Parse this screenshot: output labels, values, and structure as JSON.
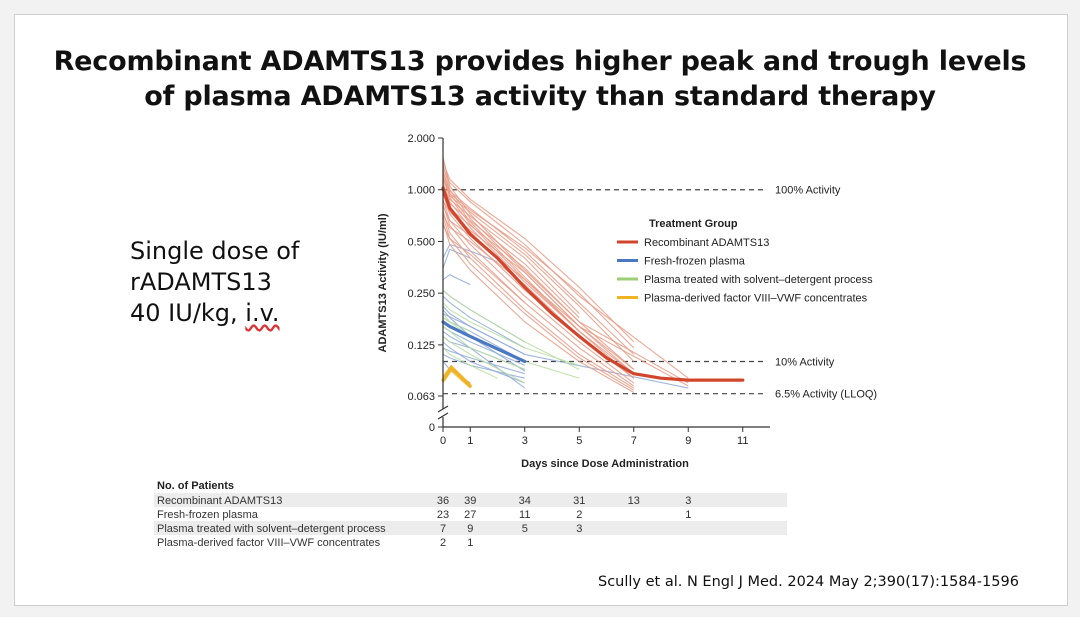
{
  "slide": {
    "title_line1": "Recombinant ADAMTS13 provides higher peak and trough levels",
    "title_line2": "of plasma ADAMTS13 activity than standard therapy",
    "side_line1": "Single dose of",
    "side_line2": "rADAMTS13",
    "side_line3_a": "40 IU/kg, ",
    "side_line3_b": "i.v.",
    "citation": "Scully et al. N Engl J Med. 2024 May 2;390(17):1584-1596"
  },
  "chart_data": {
    "type": "line",
    "ylabel": "ADAMTS13 Activity (IU/ml)",
    "xlabel": "Days since Dose Administration",
    "y_scale": "log2",
    "yticks": [
      {
        "value": 2.0,
        "label": "2.000"
      },
      {
        "value": 1.0,
        "label": "1.000"
      },
      {
        "value": 0.5,
        "label": "0.500"
      },
      {
        "value": 0.25,
        "label": "0.250"
      },
      {
        "value": 0.125,
        "label": "0.125"
      },
      {
        "value": 0.063,
        "label": "0.063"
      }
    ],
    "y_zero_label": "0",
    "xticks": [
      0,
      1,
      3,
      5,
      7,
      9,
      11
    ],
    "xlim": [
      0,
      12
    ],
    "reference_lines": [
      {
        "value": 1.0,
        "label": "100% Activity"
      },
      {
        "value": 0.1,
        "label": "10% Activity"
      },
      {
        "value": 0.065,
        "label": "6.5% Activity (LLOQ)"
      }
    ],
    "legend_title": "Treatment Group",
    "series": [
      {
        "name": "Recombinant ADAMTS13",
        "color": "#d2452d",
        "light_color": "#e89a85",
        "median": {
          "x": [
            0,
            0.25,
            1,
            2,
            3,
            4,
            5,
            6,
            7,
            8,
            9,
            11
          ],
          "y": [
            1.02,
            0.78,
            0.55,
            0.4,
            0.27,
            0.19,
            0.14,
            0.105,
            0.085,
            0.08,
            0.078,
            0.078
          ]
        },
        "individual": [
          {
            "x": [
              0,
              0.25,
              1,
              3,
              5,
              7
            ],
            "y": [
              1.55,
              1.05,
              0.72,
              0.34,
              0.17,
              0.09
            ]
          },
          {
            "x": [
              0,
              0.25,
              1,
              3,
              5,
              7
            ],
            "y": [
              1.4,
              1.0,
              0.68,
              0.33,
              0.16,
              0.085
            ]
          },
          {
            "x": [
              0,
              0.25,
              1,
              3,
              5,
              7
            ],
            "y": [
              1.3,
              0.95,
              0.65,
              0.31,
              0.15,
              0.08
            ]
          },
          {
            "x": [
              0,
              0.25,
              1,
              3,
              5,
              7
            ],
            "y": [
              1.2,
              0.9,
              0.63,
              0.3,
              0.16,
              0.09
            ]
          },
          {
            "x": [
              0,
              0.25,
              1,
              3,
              5,
              7
            ],
            "y": [
              1.1,
              0.85,
              0.6,
              0.29,
              0.15,
              0.085
            ]
          },
          {
            "x": [
              0,
              0.25,
              1,
              3,
              5,
              7
            ],
            "y": [
              1.0,
              0.8,
              0.57,
              0.27,
              0.14,
              0.08
            ]
          },
          {
            "x": [
              0,
              0.25,
              1,
              3,
              5,
              7
            ],
            "y": [
              0.95,
              0.72,
              0.52,
              0.26,
              0.14,
              0.08
            ]
          },
          {
            "x": [
              0,
              0.25,
              1,
              3,
              5,
              7
            ],
            "y": [
              0.88,
              0.66,
              0.48,
              0.24,
              0.13,
              0.075
            ]
          },
          {
            "x": [
              0,
              0.25,
              1,
              3,
              5,
              7
            ],
            "y": [
              0.82,
              0.62,
              0.44,
              0.22,
              0.12,
              0.072
            ]
          },
          {
            "x": [
              0,
              0.25,
              1,
              3,
              5,
              7
            ],
            "y": [
              0.75,
              0.56,
              0.4,
              0.2,
              0.11,
              0.07
            ]
          },
          {
            "x": [
              0,
              0.25,
              1,
              3,
              5,
              7
            ],
            "y": [
              0.7,
              0.52,
              0.37,
              0.19,
              0.105,
              0.068
            ]
          },
          {
            "x": [
              0,
              0.25,
              1,
              3,
              5,
              7
            ],
            "y": [
              0.65,
              0.48,
              0.34,
              0.17,
              0.1,
              0.066
            ]
          },
          {
            "x": [
              0,
              0.25,
              1,
              3,
              5,
              7
            ],
            "y": [
              1.25,
              0.98,
              0.78,
              0.44,
              0.22,
              0.11
            ]
          },
          {
            "x": [
              0,
              0.25,
              1,
              3,
              5,
              7
            ],
            "y": [
              1.15,
              0.92,
              0.74,
              0.42,
              0.21,
              0.1
            ]
          },
          {
            "x": [
              0,
              0.25,
              1,
              3,
              5
            ],
            "y": [
              1.05,
              0.88,
              0.7,
              0.4,
              0.19
            ]
          },
          {
            "x": [
              0,
              0.25,
              1,
              3,
              5
            ],
            "y": [
              0.98,
              0.83,
              0.66,
              0.37,
              0.18
            ]
          },
          {
            "x": [
              0,
              0.25,
              1,
              3,
              5,
              9
            ],
            "y": [
              0.92,
              0.78,
              0.62,
              0.35,
              0.17,
              0.075
            ]
          },
          {
            "x": [
              0,
              0.25,
              1,
              3,
              5,
              9
            ],
            "y": [
              0.86,
              0.74,
              0.58,
              0.33,
              0.16,
              0.072
            ]
          },
          {
            "x": [
              0,
              0.25,
              1,
              3,
              5,
              9
            ],
            "y": [
              1.35,
              1.1,
              0.85,
              0.48,
              0.24,
              0.08
            ]
          },
          {
            "x": [
              0,
              0.25,
              1,
              3,
              5
            ],
            "y": [
              0.8,
              0.66,
              0.54,
              0.3,
              0.15
            ]
          },
          {
            "x": [
              0,
              0.25,
              1,
              3,
              5
            ],
            "y": [
              0.72,
              0.6,
              0.5,
              0.28,
              0.14
            ]
          },
          {
            "x": [
              0,
              0.25,
              1,
              3
            ],
            "y": [
              0.62,
              0.52,
              0.42,
              0.22
            ]
          },
          {
            "x": [
              0,
              0.25,
              1,
              3,
              5,
              7
            ],
            "y": [
              1.45,
              1.15,
              0.88,
              0.52,
              0.27,
              0.13
            ]
          },
          {
            "x": [
              0,
              0.25,
              1,
              3,
              5,
              7
            ],
            "y": [
              1.18,
              0.95,
              0.76,
              0.46,
              0.25,
              0.12
            ]
          }
        ]
      },
      {
        "name": "Fresh-frozen plasma",
        "color": "#4a78c2",
        "light_color": "#8ea9d8",
        "median": {
          "x": [
            0,
            0.25,
            1,
            3
          ],
          "y": [
            0.17,
            0.16,
            0.14,
            0.1
          ]
        },
        "individual": [
          {
            "x": [
              0,
              0.25,
              1,
              3
            ],
            "y": [
              0.24,
              0.22,
              0.18,
              0.12
            ]
          },
          {
            "x": [
              0,
              0.25,
              1,
              3
            ],
            "y": [
              0.21,
              0.19,
              0.16,
              0.11
            ]
          },
          {
            "x": [
              0,
              0.25,
              1,
              3
            ],
            "y": [
              0.18,
              0.17,
              0.15,
              0.1
            ]
          },
          {
            "x": [
              0,
              0.25,
              1,
              3
            ],
            "y": [
              0.16,
              0.15,
              0.13,
              0.095
            ]
          },
          {
            "x": [
              0,
              0.25,
              1,
              3
            ],
            "y": [
              0.14,
              0.13,
              0.12,
              0.09
            ]
          },
          {
            "x": [
              0,
              0.25,
              1,
              3
            ],
            "y": [
              0.12,
              0.115,
              0.105,
              0.085
            ]
          },
          {
            "x": [
              0,
              0.25,
              1,
              3
            ],
            "y": [
              0.11,
              0.105,
              0.095,
              0.08
            ]
          },
          {
            "x": [
              0,
              0.25,
              1,
              3
            ],
            "y": [
              0.2,
              0.18,
              0.14,
              0.088
            ]
          },
          {
            "x": [
              0,
              0.25,
              1,
              3
            ],
            "y": [
              0.26,
              0.24,
              0.2,
              0.13
            ]
          },
          {
            "x": [
              0,
              0.25,
              1
            ],
            "y": [
              0.3,
              0.32,
              0.28
            ]
          },
          {
            "x": [
              0,
              0.25,
              1,
              2
            ],
            "y": [
              0.4,
              0.48,
              0.44,
              0.38
            ]
          },
          {
            "x": [
              0,
              0.25,
              1
            ],
            "y": [
              0.35,
              0.45,
              0.4
            ]
          },
          {
            "x": [
              0,
              0.25,
              1,
              3
            ],
            "y": [
              0.15,
              0.14,
              0.12,
              0.07
            ]
          },
          {
            "x": [
              0,
              0.25,
              1
            ],
            "y": [
              0.1,
              0.09,
              0.075
            ]
          },
          {
            "x": [
              0,
              0.25,
              1,
              3
            ],
            "y": [
              0.13,
              0.12,
              0.1,
              0.075
            ]
          },
          {
            "x": [
              0,
              1,
              3,
              9
            ],
            "y": [
              0.19,
              0.16,
              0.11,
              0.07
            ]
          }
        ]
      },
      {
        "name": "Plasma treated with solvent–detergent process",
        "color": "#9ccf74",
        "light_color": "#b9dea0",
        "median": null,
        "individual": [
          {
            "x": [
              0,
              0.25,
              1,
              3,
              5
            ],
            "y": [
              0.22,
              0.2,
              0.17,
              0.12,
              0.095
            ]
          },
          {
            "x": [
              0,
              0.25,
              1,
              3,
              5
            ],
            "y": [
              0.19,
              0.17,
              0.14,
              0.1,
              0.08
            ]
          },
          {
            "x": [
              0,
              0.25,
              1,
              3
            ],
            "y": [
              0.16,
              0.15,
              0.12,
              0.09
            ]
          },
          {
            "x": [
              0,
              0.25,
              1,
              3,
              5
            ],
            "y": [
              0.26,
              0.24,
              0.2,
              0.13,
              0.09
            ]
          },
          {
            "x": [
              0,
              0.25,
              1,
              3
            ],
            "y": [
              0.14,
              0.13,
              0.11,
              0.075
            ]
          },
          {
            "x": [
              0,
              0.25,
              1,
              2
            ],
            "y": [
              0.12,
              0.11,
              0.095,
              0.08
            ]
          },
          {
            "x": [
              0,
              0.25,
              1
            ],
            "y": [
              0.18,
              0.17,
              0.15
            ]
          }
        ]
      },
      {
        "name": "Plasma-derived factor VIII–VWF concentrates",
        "color": "#f0b322",
        "light_color": "#f0b322",
        "median": {
          "x": [
            0,
            0.3,
            1
          ],
          "y": [
            0.078,
            0.092,
            0.072
          ]
        },
        "individual": [
          {
            "x": [
              0,
              0.3,
              1
            ],
            "y": [
              0.075,
              0.088,
              0.07
            ]
          },
          {
            "x": [
              0,
              0.3,
              1
            ],
            "y": [
              0.082,
              0.095,
              0.074
            ]
          }
        ]
      }
    ],
    "patients_table": {
      "title": "No. of Patients",
      "days": [
        0,
        1,
        3,
        5,
        7,
        9
      ],
      "rows": [
        {
          "label": "Recombinant ADAMTS13",
          "counts": [
            "36",
            "39",
            "34",
            "31",
            "13",
            "3"
          ]
        },
        {
          "label": "Fresh-frozen plasma",
          "counts": [
            "23",
            "27",
            "11",
            "2",
            "",
            "1"
          ]
        },
        {
          "label": "Plasma treated with solvent–detergent process",
          "counts": [
            "7",
            "9",
            "5",
            "3",
            "",
            ""
          ]
        },
        {
          "label": "Plasma-derived factor VIII–VWF concentrates",
          "counts": [
            "2",
            "1",
            "",
            "",
            "",
            ""
          ]
        }
      ]
    }
  }
}
